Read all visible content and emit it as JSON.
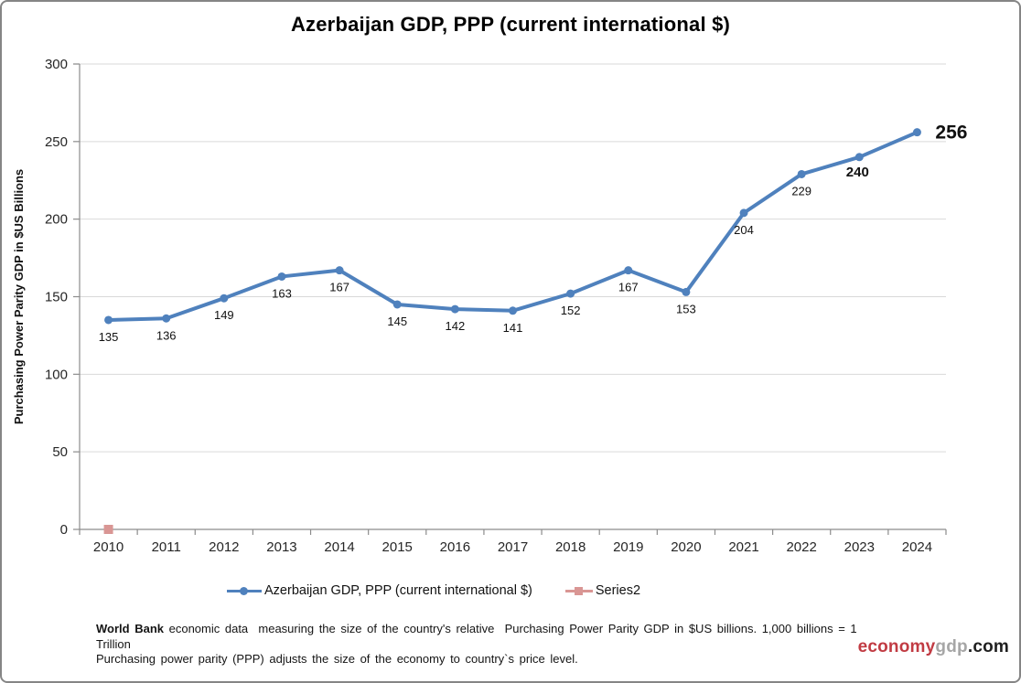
{
  "title": "Azerbaijan GDP, PPP (current international $)",
  "chart_data": {
    "type": "line",
    "title": "Azerbaijan GDP, PPP (current international $)",
    "categories": [
      "2010",
      "2011",
      "2012",
      "2013",
      "2014",
      "2015",
      "2016",
      "2017",
      "2018",
      "2019",
      "2020",
      "2021",
      "2022",
      "2023",
      "2024"
    ],
    "series": [
      {
        "name": "Azerbaijan GDP, PPP (current international $)",
        "color": "#4F81BD",
        "marker": "circle",
        "values": [
          135,
          136,
          149,
          163,
          167,
          145,
          142,
          141,
          152,
          167,
          153,
          204,
          229,
          240,
          256
        ]
      },
      {
        "name": "Series2",
        "color": "#D99694",
        "marker": "square",
        "values": [
          0,
          null,
          null,
          null,
          null,
          null,
          null,
          null,
          null,
          null,
          null,
          null,
          null,
          null,
          null
        ]
      }
    ],
    "data_labels": true,
    "data_label_styles": [
      "normal",
      "normal",
      "normal",
      "normal",
      "normal",
      "normal",
      "normal",
      "normal",
      "normal",
      "normal",
      "normal",
      "normal",
      "normal",
      "bold",
      "big"
    ],
    "xlabel": "",
    "ylabel": "Purchasing Power Parity GDP in $US Billions",
    "ylim": [
      0,
      300
    ],
    "yticks": [
      0,
      50,
      100,
      150,
      200,
      250,
      300
    ],
    "grid": "horizontal",
    "legend_position": "bottom"
  },
  "footer": {
    "line1_bold": "World Bank",
    "line1_rest": " economic data  measuring the size of the country's relative  Purchasing Power Parity GDP in $US billions. 1,000 billions = 1 Trillion",
    "line2": "Purchasing power parity (PPP) adjusts the size of the economy to country`s price level."
  },
  "watermark": {
    "economy": "economy",
    "gdp": "gdp",
    "tld": ".com"
  },
  "colors": {
    "series1_blue": "#4F81BD",
    "series2_pink": "#D99694",
    "gridline": "#D9D9D9",
    "axis": "#8C8C8C",
    "watermark_red": "#C13B43",
    "watermark_gray": "#A6A6A6",
    "watermark_dark": "#1F1F1F"
  }
}
